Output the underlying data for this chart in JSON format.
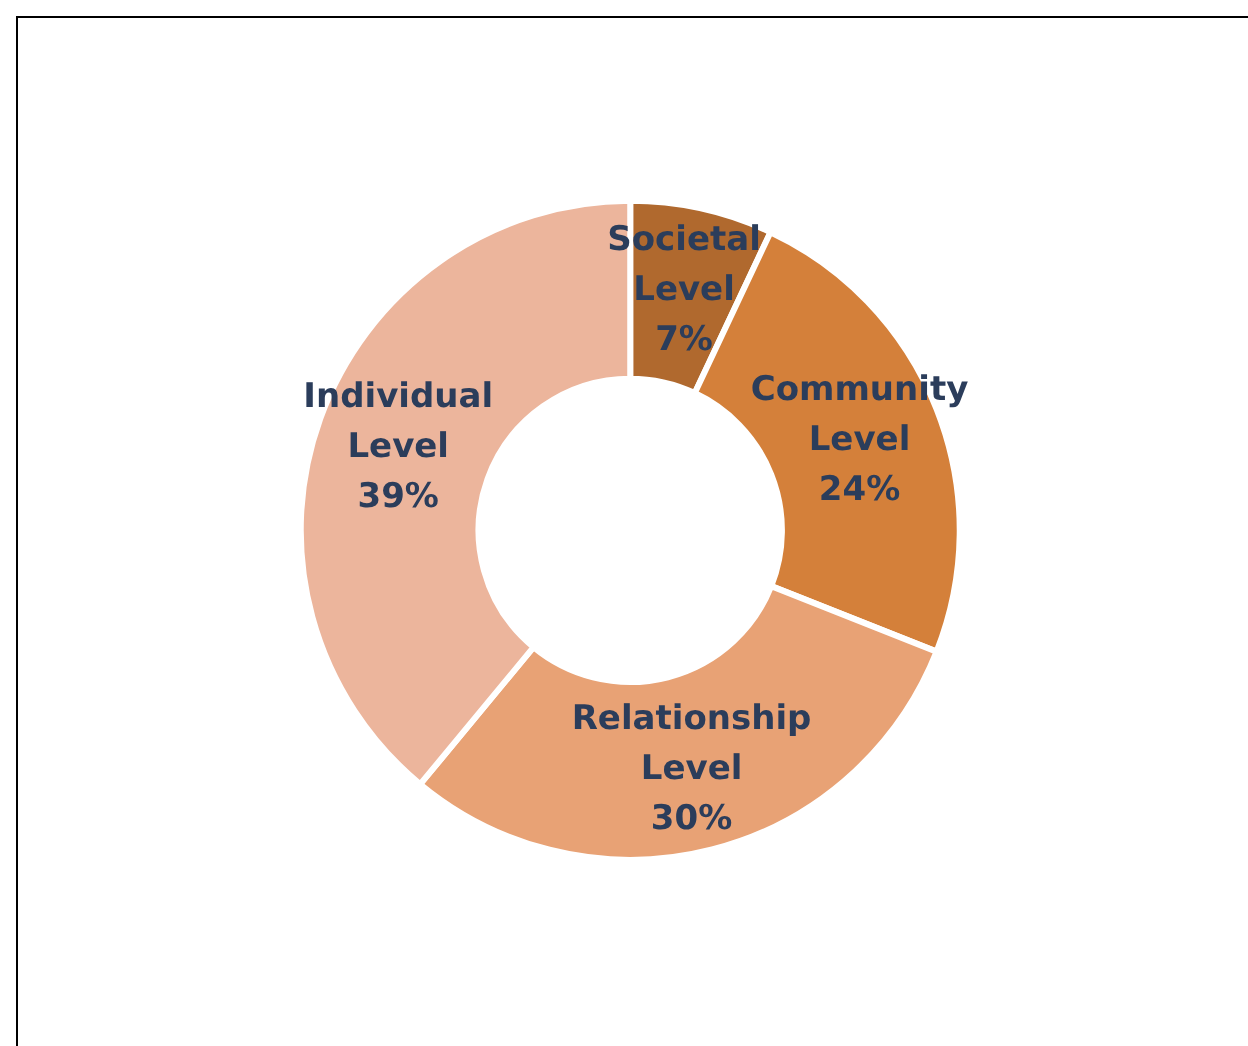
{
  "chart_data": {
    "type": "donut",
    "categories": [
      "Societal Level",
      "Community Level",
      "Relationship Level",
      "Individual Level"
    ],
    "values": [
      7,
      24,
      30,
      39
    ],
    "value_labels": [
      "7%",
      "24%",
      "30%",
      "39%"
    ],
    "colors": [
      "#b0692e",
      "#d4803a",
      "#e8a275",
      "#ecb59c"
    ],
    "legend": false
  }
}
